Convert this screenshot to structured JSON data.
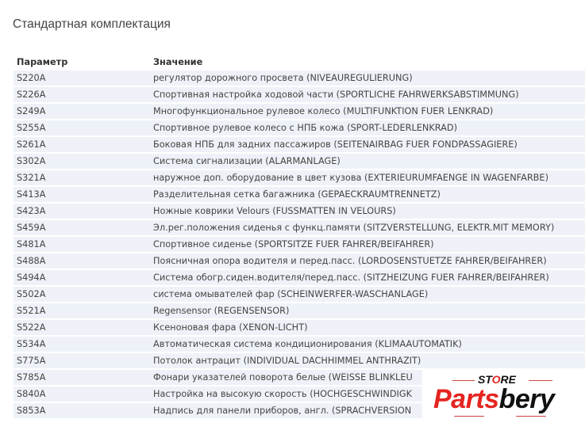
{
  "title": "Стандартная комплектация",
  "table": {
    "headers": [
      "Параметр",
      "Значение"
    ],
    "rows": [
      {
        "code": "S220A",
        "value": "регулятор дорожного просвета (NIVEAUREGULIERUNG)"
      },
      {
        "code": "S226A",
        "value": "Спортивная настройка ходовой части (SPORTLICHE FAHRWERKSABSTIMMUNG)"
      },
      {
        "code": "S249A",
        "value": "Многофункциональное рулевое колесо (MULTIFUNKTION FUER LENKRAD)"
      },
      {
        "code": "S255A",
        "value": "Спортивное рулевое колесо с НПБ кожа (SPORT-LEDERLENKRAD)"
      },
      {
        "code": "S261A",
        "value": "Боковая НПБ для задних пассажиров (SEITENAIRBAG FUER FONDPASSAGIERE)"
      },
      {
        "code": "S302A",
        "value": "Система сигнализации (ALARMANLAGE)"
      },
      {
        "code": "S321A",
        "value": "наружное доп. оборудование в цвет кузова (EXTERIEURUMFAENGE IN WAGENFARBE)"
      },
      {
        "code": "S413A",
        "value": "Разделительная сетка багажника (GEPAECKRAUMTRENNETZ)"
      },
      {
        "code": "S423A",
        "value": "Ножные коврики Velours (FUSSMATTEN IN VELOURS)"
      },
      {
        "code": "S459A",
        "value": "Эл.рег.положения сиденья с функц.памяти (SITZVERSTELLUNG, ELEKTR.MIT MEMORY)"
      },
      {
        "code": "S481A",
        "value": "Спортивное сиденье (SPORTSITZE FUER FAHRER/BEIFAHRER)"
      },
      {
        "code": "S488A",
        "value": "Поясничная опора водителя и перед.пасс. (LORDOSENSTUETZE FAHRER/BEIFAHRER)"
      },
      {
        "code": "S494A",
        "value": "Система обогр.сиден.водителя/перед.пасс. (SITZHEIZUNG FUER FAHRER/BEIFAHRER)"
      },
      {
        "code": "S502A",
        "value": "система омывателей фар (SCHEINWERFER-WASCHANLAGE)"
      },
      {
        "code": "S521A",
        "value": "Regensensor (REGENSENSOR)"
      },
      {
        "code": "S522A",
        "value": "Ксеноновая фара (XENON-LICHT)"
      },
      {
        "code": "S534A",
        "value": "Автоматическая система кондиционирования (KLIMAAUTOMATIK)"
      },
      {
        "code": "S775A",
        "value": "Потолок антрацит (INDIVIDUAL DACHHIMMEL ANTHRAZIT)"
      },
      {
        "code": "S785A",
        "value": "Фонари указателей поворота белые (WEISSE BLINKLEU"
      },
      {
        "code": "S840A",
        "value": "Настройка на высокую скорость (HOCHGESCHWINDIGK"
      },
      {
        "code": "S853A",
        "value": "Надпись для панели приборов, англ. (SPRACHVERSION"
      }
    ]
  },
  "watermark": {
    "store": "STORE",
    "brand_part1": "Parts",
    "brand_part2": "bery",
    "colors": {
      "red": "#e52420",
      "black": "#111111"
    }
  }
}
